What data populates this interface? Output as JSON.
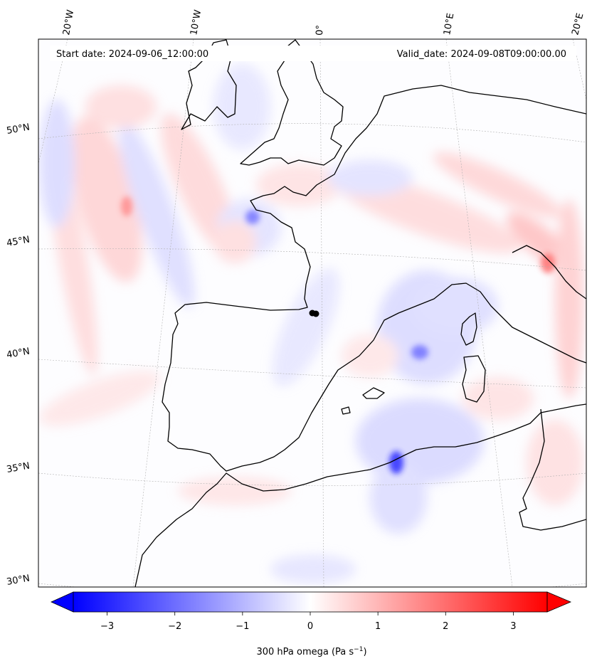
{
  "header": {
    "start_date": "Start date: 2024-09-06_12:00:00",
    "valid_date": "Valid_date: 2024-09-08T09:00:00.00"
  },
  "longitude_labels": [
    "20°W",
    "10°W",
    "0°",
    "10°E",
    "20°E"
  ],
  "latitude_labels": [
    "50°N",
    "45°N",
    "40°N",
    "35°N",
    "30°N"
  ],
  "colorbar": {
    "ticks": [
      "−3",
      "−2",
      "−1",
      "0",
      "1",
      "2",
      "3"
    ],
    "tick_values": [
      -3,
      -2,
      -1,
      0,
      1,
      2,
      3
    ],
    "range": [
      -3.5,
      3.5
    ],
    "label": "300 hPa omega (Pa s",
    "label_sup": "−1",
    "label_tail": ")",
    "colors": {
      "min": "#0000ff",
      "mid": "#ffffff",
      "max": "#ff0000"
    }
  },
  "colors": {
    "coastline": "#000000",
    "gridline": "#b0b0b0",
    "marker": "#000000"
  }
}
